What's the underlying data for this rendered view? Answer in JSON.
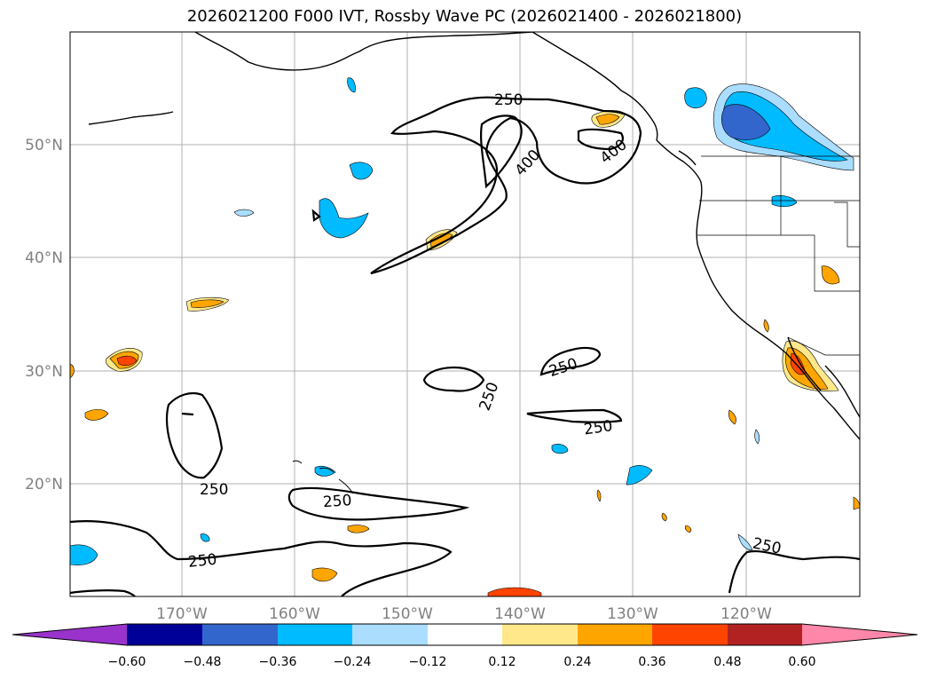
{
  "title": "2026021200 F000 IVT, Rossby Wave PC (2026021400 - 2026021800)",
  "latitude_labels": [
    "50°N",
    "40°N",
    "30°N",
    "20°N"
  ],
  "longitude_labels": [
    "170°W",
    "160°W",
    "150°W",
    "140°W",
    "130°W",
    "120°W"
  ],
  "contour_labels": {
    "c1": "250",
    "c2": "400",
    "c3": "400",
    "c4": "250",
    "c5": "250",
    "c6": "250",
    "c7": "250",
    "c8": "250",
    "c9": "250",
    "c10": "250"
  },
  "colorbar": {
    "ticks": [
      "−0.60",
      "−0.48",
      "−0.36",
      "−0.24",
      "−0.12",
      "0.12",
      "0.24",
      "0.36",
      "0.48",
      "0.60"
    ],
    "colors": [
      "#9933cc",
      "#000099",
      "#3366cc",
      "#00bbff",
      "#aaddff",
      "#ffffff",
      "#ffe88a",
      "#ffa500",
      "#ff4400",
      "#b22222",
      "#ff88aa"
    ]
  }
}
